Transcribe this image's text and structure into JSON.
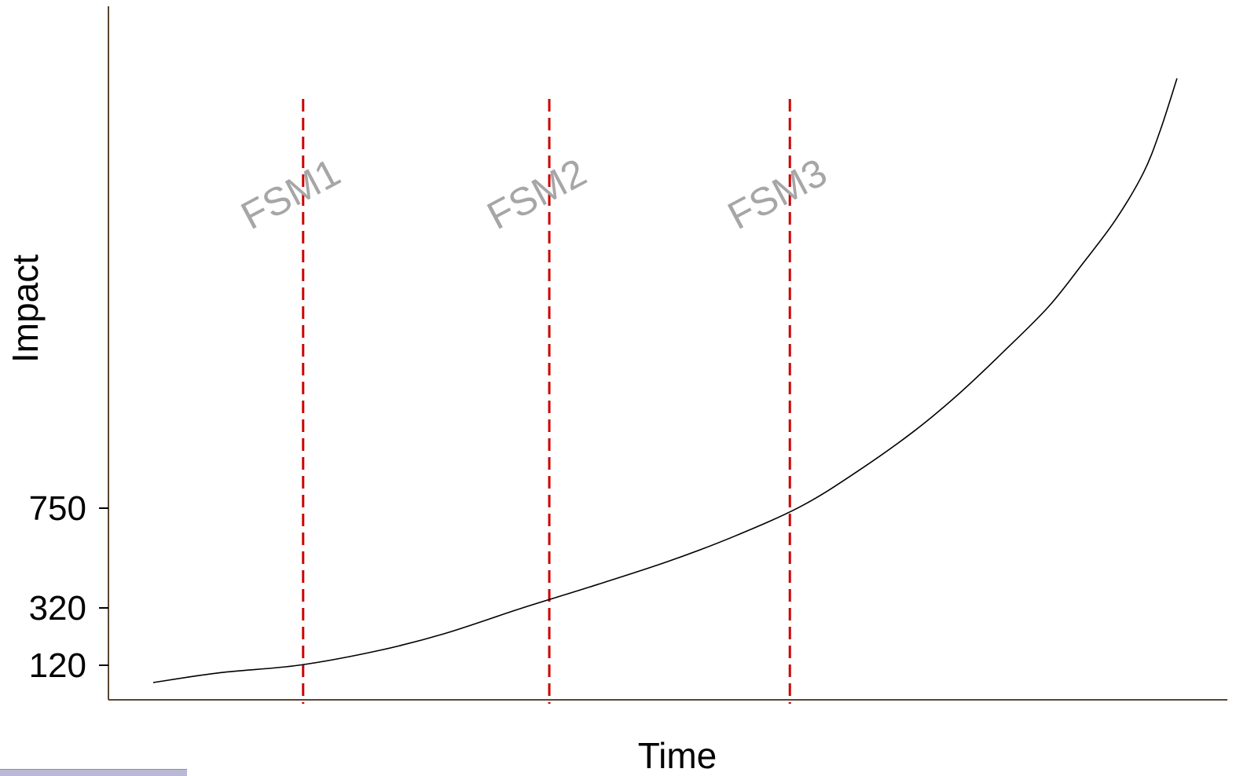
{
  "chart_data": {
    "type": "line",
    "title": "",
    "xlabel": "Time",
    "ylabel": "Impact",
    "yticks": [
      {
        "value": 120,
        "label": "120"
      },
      {
        "value": 320,
        "label": "320"
      },
      {
        "value": 750,
        "label": "750"
      }
    ],
    "xlim": [
      0,
      100
    ],
    "ylim": [
      -20,
      2770
    ],
    "series": [
      {
        "x": [
          4,
          10,
          17,
          24,
          30,
          37,
          43,
          50,
          56,
          62,
          67,
          72,
          76,
          80,
          84,
          87,
          90,
          92.5,
          94,
          95.5
        ],
        "y": [
          50,
          90,
          120,
          170,
          230,
          320,
          410,
          520,
          630,
          760,
          900,
          1060,
          1210,
          1380,
          1560,
          1730,
          1910,
          2100,
          2270,
          2480
        ]
      }
    ],
    "markers": [
      {
        "label": "FSM1",
        "x": 17.4
      },
      {
        "label": "FSM2",
        "x": 39.4
      },
      {
        "label": "FSM3",
        "x": 60.9
      }
    ],
    "colors": {
      "curve": "#000000",
      "markers": "#cc0000",
      "marker_labels": "#a6a6a6",
      "axes": "#5a4632"
    },
    "grid": false,
    "legend": "none"
  }
}
